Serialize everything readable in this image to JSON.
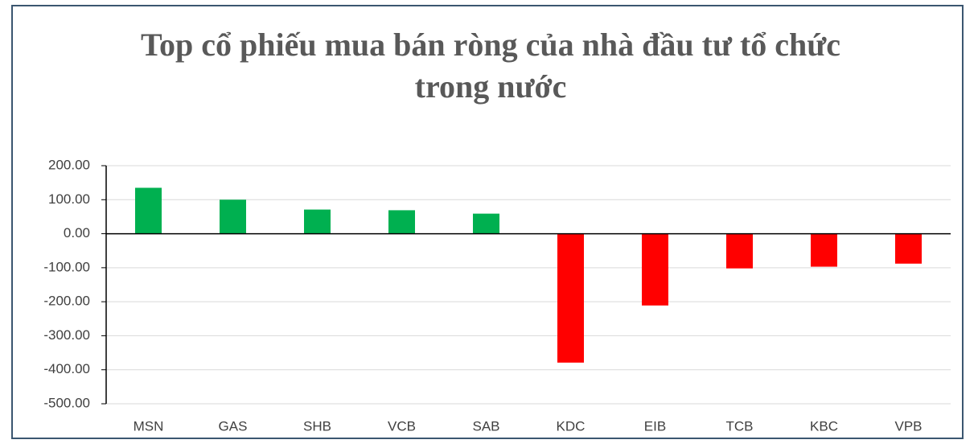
{
  "chart_data": {
    "type": "bar",
    "title": "Top cổ phiếu mua bán ròng của nhà đầu tư tổ chức trong nước",
    "categories": [
      "MSN",
      "GAS",
      "SHB",
      "VCB",
      "SAB",
      "KDC",
      "EIB",
      "TCB",
      "KBC",
      "VPB"
    ],
    "values": [
      135,
      100,
      71,
      69,
      59,
      -379,
      -211,
      -102,
      -97,
      -88
    ],
    "positive_color": "#00b050",
    "negative_color": "#ff0000",
    "ylim": [
      -500,
      200
    ],
    "yticks": [
      {
        "value": -500,
        "label": "-500.00"
      },
      {
        "value": -400,
        "label": "-400.00"
      },
      {
        "value": -300,
        "label": "-300.00"
      },
      {
        "value": -200,
        "label": "-200.00"
      },
      {
        "value": -100,
        "label": "-100.00"
      },
      {
        "value": 0,
        "label": "0.00"
      },
      {
        "value": 100,
        "label": "100.00"
      },
      {
        "value": 200,
        "label": "200.00"
      }
    ],
    "grid": true
  }
}
